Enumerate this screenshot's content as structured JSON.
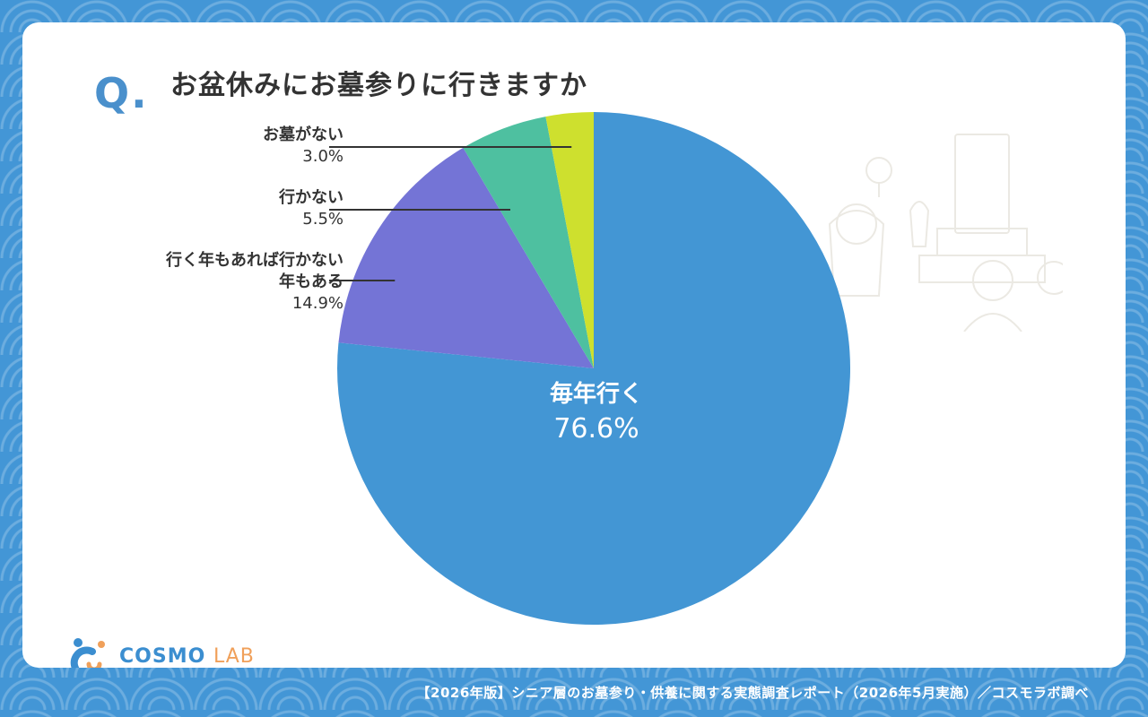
{
  "header": {
    "q_mark": "Q.",
    "title": "お盆休みにお墓参りに行きますか"
  },
  "chart_data": {
    "type": "pie",
    "title": "お盆休みにお墓参りに行きますか",
    "start_angle_deg": 0,
    "direction": "clockwise",
    "slices": [
      {
        "label": "毎年行く",
        "value": 76.6,
        "display": "76.6%",
        "color": "#4396d4"
      },
      {
        "label": "行く年もあれば行かない年もある",
        "label_lines": [
          "行く年もあれば行かない",
          "年もある"
        ],
        "value": 14.9,
        "display": "14.9%",
        "color": "#7474d6"
      },
      {
        "label": "行かない",
        "value": 5.5,
        "display": "5.5%",
        "color": "#4ec0a0"
      },
      {
        "label": "お墓がない",
        "value": 3.0,
        "display": "3.0%",
        "color": "#cee02e"
      }
    ]
  },
  "callouts": {
    "no_grave": {
      "name": "お墓がない",
      "pct": "3.0%"
    },
    "not_go": {
      "name": "行かない",
      "pct": "5.5%"
    },
    "some_years": {
      "name_line1": "行く年もあれば行かない",
      "name_line2": "年もある",
      "pct": "14.9%"
    },
    "every_year": {
      "name": "毎年行く",
      "pct": "76.6%"
    }
  },
  "logo": {
    "brand": "COSMO",
    "suffix": "LAB"
  },
  "footer": {
    "source": "【2026年版】シニア層のお墓参り・供養に関する実態調査レポート（2026年5月実施）／コスモラボ調べ"
  },
  "colors": {
    "background": "#4396d6",
    "accent": "#4a90cc",
    "text": "#333333"
  }
}
